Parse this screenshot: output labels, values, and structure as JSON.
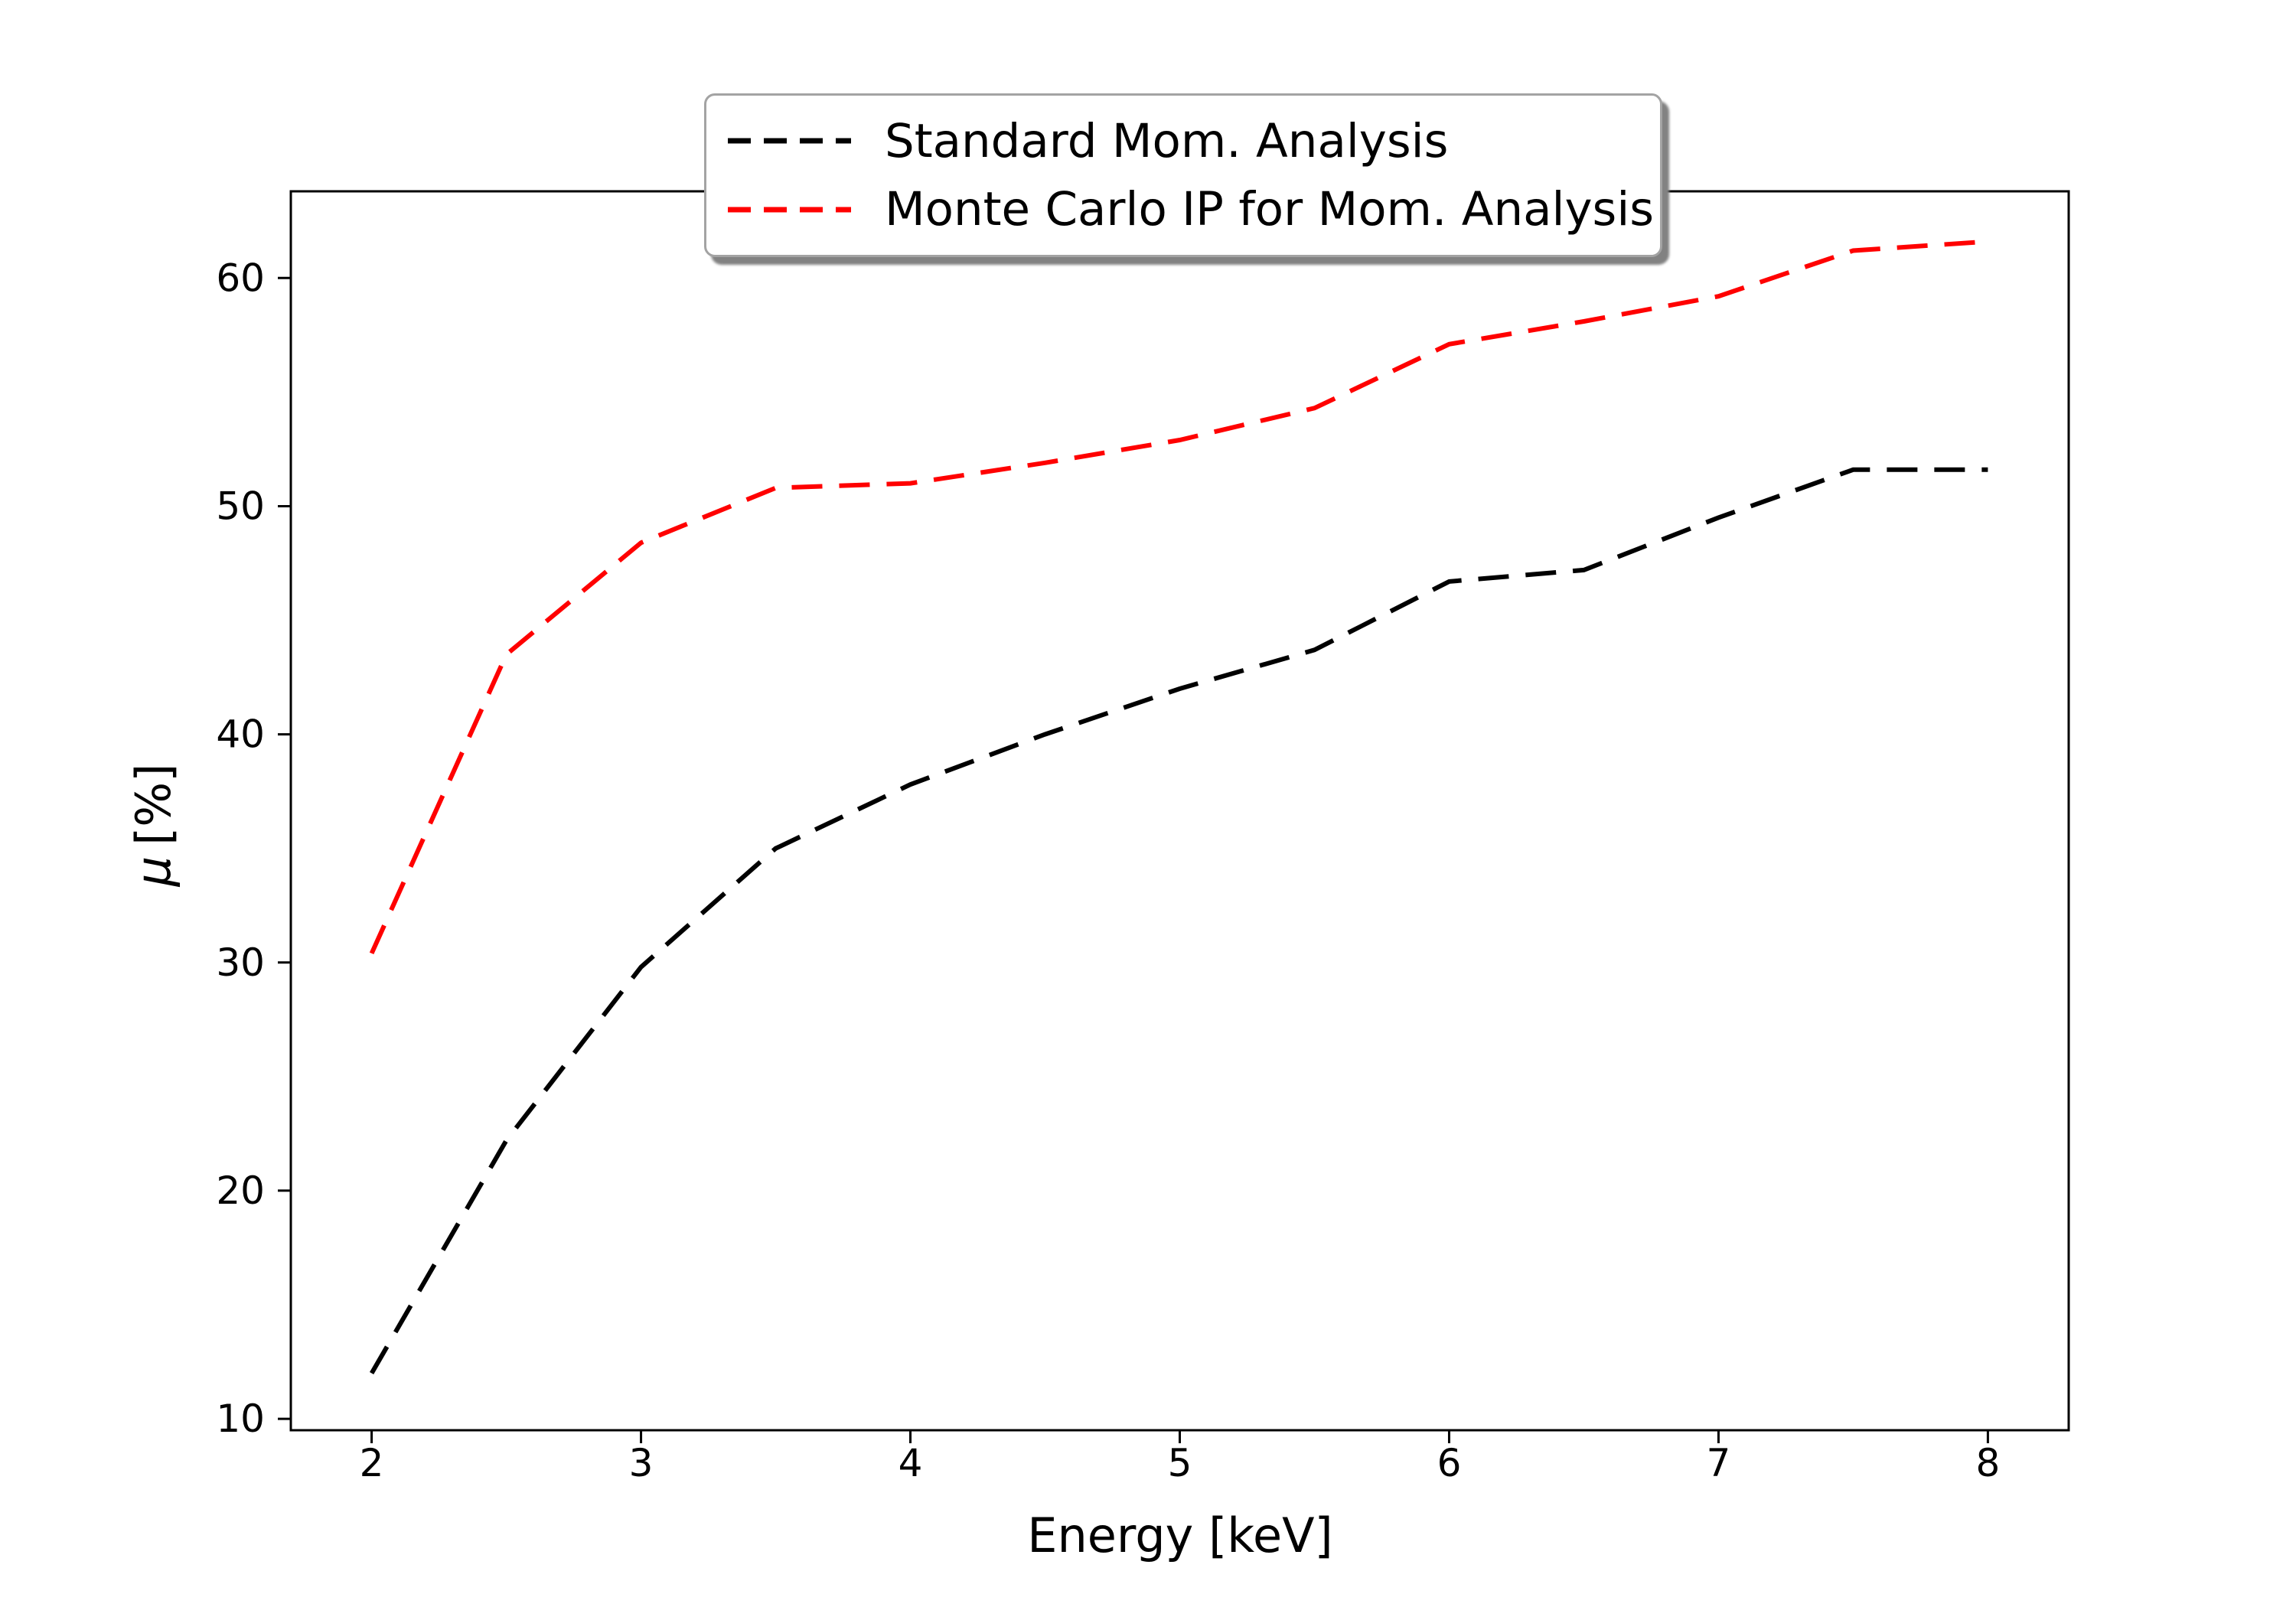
{
  "figure": {
    "background": "#ffffff",
    "text_color": "#000000",
    "axis_color": "#000000"
  },
  "chart_data": {
    "type": "line",
    "title": "",
    "xlabel": "Energy [keV]",
    "ylabel": "μ [%]",
    "ylabel_parts": {
      "symbol": "μ",
      "unit": "[%]"
    },
    "x": [
      2,
      2.5,
      3,
      3.5,
      4,
      4.5,
      5,
      5.5,
      6,
      6.5,
      7,
      7.5,
      8
    ],
    "series": [
      {
        "name": "Standard Mom. Analysis",
        "color": "#000000",
        "linestyle": "dashed",
        "values": [
          12.0,
          22.2,
          29.8,
          35.0,
          37.8,
          40.0,
          42.0,
          43.7,
          46.7,
          47.2,
          49.5,
          51.6,
          51.6
        ]
      },
      {
        "name": "Monte Carlo IP for Mom. Analysis",
        "color": "#ff0000",
        "linestyle": "dashed",
        "values": [
          30.4,
          43.5,
          48.4,
          50.8,
          51.0,
          51.9,
          52.9,
          54.3,
          57.1,
          58.1,
          59.2,
          61.2,
          61.6
        ]
      }
    ],
    "x_ticks": [
      2,
      3,
      4,
      5,
      6,
      7,
      8
    ],
    "y_ticks": [
      10,
      20,
      30,
      40,
      50,
      60
    ],
    "xlim": [
      1.7,
      8.3
    ],
    "ylim": [
      9.5,
      63.8
    ],
    "grid": false,
    "legend": {
      "position": "upper center",
      "fancybox": true,
      "shadow": true,
      "entries": [
        "Standard Mom. Analysis",
        "Monte Carlo IP for Mom. Analysis"
      ]
    }
  }
}
